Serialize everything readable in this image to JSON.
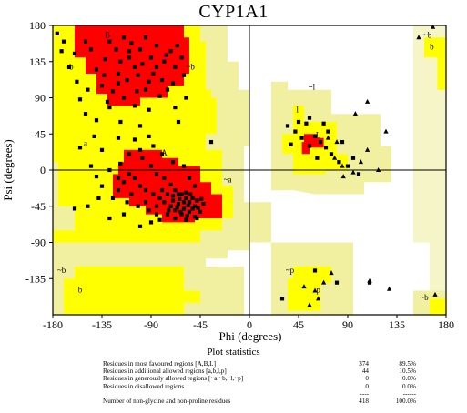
{
  "chart_data": {
    "type": "scatter",
    "title": "CYP1A1",
    "xlabel": "Phi (degrees)",
    "ylabel": "Psi (degrees)",
    "xlim": [
      -180,
      180
    ],
    "ylim": [
      -180,
      180
    ],
    "x_ticks": [
      "-180",
      "-135",
      "-90",
      "-45",
      "0",
      "45",
      "90",
      "135",
      "180"
    ],
    "y_ticks": [
      "180",
      "135",
      "90",
      "45",
      "0",
      "-45",
      "-90",
      "-135"
    ],
    "grid": false,
    "colors": {
      "core": "#ff0000",
      "allowed": "#ffff00",
      "generous": "#f0f0a0",
      "generous_pale": "#f5f5c8",
      "disallowed": "#ffffff",
      "points": "#000000"
    },
    "region_labels": [
      {
        "text": "B",
        "phi": -130,
        "psi": 165
      },
      {
        "text": "b",
        "phi": -163,
        "psi": 125
      },
      {
        "text": "~b",
        "phi": -54,
        "psi": 125
      },
      {
        "text": "~b",
        "phi": 163,
        "psi": 165
      },
      {
        "text": "b",
        "phi": 167,
        "psi": 150
      },
      {
        "text": "~l",
        "phi": 57,
        "psi": 100
      },
      {
        "text": "l",
        "phi": 44,
        "psi": 72
      },
      {
        "text": "L",
        "phi": 63,
        "psi": 40
      },
      {
        "text": "a",
        "phi": -150,
        "psi": 30
      },
      {
        "text": "A",
        "phi": -78,
        "psi": 18
      },
      {
        "text": "~a",
        "phi": -20,
        "psi": -15
      },
      {
        "text": "~b",
        "phi": -172,
        "psi": -128
      },
      {
        "text": "b",
        "phi": -155,
        "psi": -152
      },
      {
        "text": "~p",
        "phi": 37,
        "psi": -128
      },
      {
        "text": "p",
        "phi": 63,
        "psi": -152
      },
      {
        "text": "~b",
        "phi": 160,
        "psi": -162
      }
    ],
    "series": [
      {
        "marker": "square",
        "points_phi_psi": [
          [
            -128,
            160
          ],
          [
            -122,
            150
          ],
          [
            -115,
            165
          ],
          [
            -108,
            158
          ],
          [
            -100,
            150
          ],
          [
            -95,
            165
          ],
          [
            -90,
            140
          ],
          [
            -85,
            155
          ],
          [
            -78,
            135
          ],
          [
            -72,
            148
          ],
          [
            -68,
            128
          ],
          [
            -62,
            140
          ],
          [
            -118,
            135
          ],
          [
            -110,
            140
          ],
          [
            -105,
            128
          ],
          [
            -98,
            132
          ],
          [
            -88,
            120
          ],
          [
            -80,
            112
          ],
          [
            -75,
            100
          ],
          [
            -120,
            120
          ],
          [
            -112,
            112
          ],
          [
            -132,
            138
          ],
          [
            -140,
            125
          ],
          [
            -135,
            105
          ],
          [
            -125,
            98
          ],
          [
            -145,
            150
          ],
          [
            -150,
            160
          ],
          [
            -165,
            128
          ],
          [
            -170,
            160
          ],
          [
            -158,
            110
          ],
          [
            -103,
            98
          ],
          [
            -95,
            100
          ],
          [
            -82,
            92
          ],
          [
            -70,
            108
          ],
          [
            -60,
            118
          ],
          [
            -102,
            118
          ],
          [
            -92,
            110
          ],
          [
            -85,
            128
          ],
          [
            -76,
            143
          ],
          [
            -66,
            155
          ],
          [
            -110,
            148
          ],
          [
            -120,
            108
          ],
          [
            -133,
            118
          ],
          [
            -148,
            100
          ],
          [
            -155,
            88
          ],
          [
            -128,
            78
          ],
          [
            -105,
            80
          ],
          [
            -92,
            75
          ],
          [
            -140,
            62
          ],
          [
            -118,
            60
          ],
          [
            -100,
            55
          ],
          [
            -142,
            42
          ],
          [
            -120,
            40
          ],
          [
            -105,
            38
          ],
          [
            -155,
            28
          ],
          [
            -135,
            25
          ],
          [
            -110,
            20
          ],
          [
            -98,
            15
          ],
          [
            -90,
            5
          ],
          [
            -85,
            -5
          ],
          [
            -78,
            -10
          ],
          [
            -72,
            -18
          ],
          [
            -68,
            -25
          ],
          [
            -62,
            -30
          ],
          [
            -58,
            -35
          ],
          [
            -55,
            -40
          ],
          [
            -65,
            -42
          ],
          [
            -60,
            -48
          ],
          [
            -70,
            -38
          ],
          [
            -75,
            -30
          ],
          [
            -80,
            -25
          ],
          [
            -65,
            -30
          ],
          [
            -58,
            -28
          ],
          [
            -52,
            -35
          ],
          [
            -50,
            -45
          ],
          [
            -55,
            -52
          ],
          [
            -62,
            -55
          ],
          [
            -68,
            -50
          ],
          [
            -72,
            -45
          ],
          [
            -78,
            -40
          ],
          [
            -82,
            -35
          ],
          [
            -88,
            -30
          ],
          [
            -95,
            -25
          ],
          [
            -100,
            -20
          ],
          [
            -105,
            -10
          ],
          [
            -110,
            -5
          ],
          [
            -115,
            -15
          ],
          [
            -120,
            -25
          ],
          [
            -125,
            -35
          ],
          [
            -112,
            -40
          ],
          [
            -102,
            -45
          ],
          [
            -92,
            -50
          ],
          [
            -85,
            -55
          ],
          [
            -75,
            -55
          ],
          [
            -68,
            -60
          ],
          [
            -58,
            -62
          ],
          [
            -50,
            -58
          ],
          [
            -45,
            -52
          ],
          [
            -48,
            -38
          ],
          [
            -42,
            -42
          ],
          [
            -64,
            -36
          ],
          [
            -56,
            -44
          ],
          [
            -66,
            -46
          ],
          [
            -74,
            -50
          ],
          [
            -54,
            -30
          ],
          [
            -60,
            -40
          ],
          [
            -52,
            -48
          ],
          [
            -70,
            -32
          ],
          [
            -63,
            -52
          ],
          [
            -57,
            -57
          ],
          [
            -47,
            -47
          ],
          [
            -44,
            -36
          ],
          [
            -138,
            -35
          ],
          [
            -148,
            -45
          ],
          [
            -128,
            -60
          ],
          [
            -115,
            -55
          ],
          [
            -100,
            -70
          ],
          [
            -90,
            -65
          ],
          [
            -135,
            -20
          ],
          [
            -128,
            0
          ],
          [
            -118,
            8
          ],
          [
            -100,
            25
          ],
          [
            -88,
            30
          ],
          [
            -80,
            20
          ],
          [
            -70,
            10
          ],
          [
            -60,
            5
          ],
          [
            -55,
            -10
          ],
          [
            -50,
            -20
          ],
          [
            -145,
            5
          ],
          [
            -92,
            42
          ],
          [
            -160,
            -48
          ],
          [
            -68,
            78
          ],
          [
            -130,
            85
          ],
          [
            -115,
            90
          ],
          [
            -58,
            90
          ],
          [
            -65,
            60
          ],
          [
            -48,
            -60
          ],
          [
            -82,
            -62
          ],
          [
            -108,
            -30
          ],
          [
            -95,
            -40
          ],
          [
            -85,
            -45
          ],
          [
            -120,
            -10
          ],
          [
            -140,
            -8
          ],
          [
            -150,
            70
          ],
          [
            -172,
            148
          ],
          [
            -160,
            145
          ],
          [
            -176,
            170
          ],
          [
            35,
            55
          ],
          [
            42,
            48
          ],
          [
            48,
            40
          ],
          [
            55,
            30
          ],
          [
            60,
            42
          ],
          [
            65,
            35
          ],
          [
            70,
            28
          ],
          [
            62,
            15
          ],
          [
            75,
            20
          ],
          [
            82,
            10
          ],
          [
            90,
            5
          ],
          [
            100,
            -5
          ],
          [
            95,
            15
          ],
          [
            52,
            58
          ],
          [
            45,
            60
          ],
          [
            55,
            65
          ],
          [
            38,
            32
          ],
          [
            72,
            48
          ],
          [
            68,
            58
          ],
          [
            85,
            35
          ],
          [
            80,
            -140
          ],
          [
            -35,
            35
          ],
          [
            30,
            -160
          ],
          [
            60,
            -125
          ],
          [
            110,
            -140
          ]
        ]
      },
      {
        "marker": "triangle",
        "points_phi_psi": [
          [
            72,
            40
          ],
          [
            80,
            35
          ],
          [
            85,
            5
          ],
          [
            95,
            -3
          ],
          [
            102,
            10
          ],
          [
            108,
            25
          ],
          [
            118,
            0
          ],
          [
            78,
            15
          ],
          [
            86,
            -8
          ],
          [
            60,
            -150
          ],
          [
            50,
            -145
          ],
          [
            63,
            -160
          ],
          [
            68,
            -140
          ],
          [
            75,
            -128
          ],
          [
            55,
            -168
          ],
          [
            110,
            -138
          ],
          [
            128,
            -148
          ],
          [
            170,
            -155
          ],
          [
            108,
            85
          ],
          [
            97,
            70
          ],
          [
            125,
            48
          ],
          [
            155,
            165
          ],
          [
            168,
            178
          ]
        ]
      }
    ],
    "plot_statistics": {
      "title": "Plot statistics",
      "rows": [
        {
          "label": "Residues in most favoured regions      [A,B,L]",
          "count": "374",
          "percent": "89.5%"
        },
        {
          "label": "Residues in additional allowed regions  [a,b,l,p]",
          "count": "44",
          "percent": "10.5%"
        },
        {
          "label": "Residues in generously allowed regions [~a,~b,~l,~p]",
          "count": "0",
          "percent": "0.0%"
        },
        {
          "label": "Residues in disallowed regions",
          "count": "0",
          "percent": "0.0%"
        },
        {
          "label": "",
          "count": "----",
          "percent": "------"
        },
        {
          "label": "Number of non-glycine and non-proline residues",
          "count": "418",
          "percent": "100.0%"
        }
      ]
    }
  }
}
